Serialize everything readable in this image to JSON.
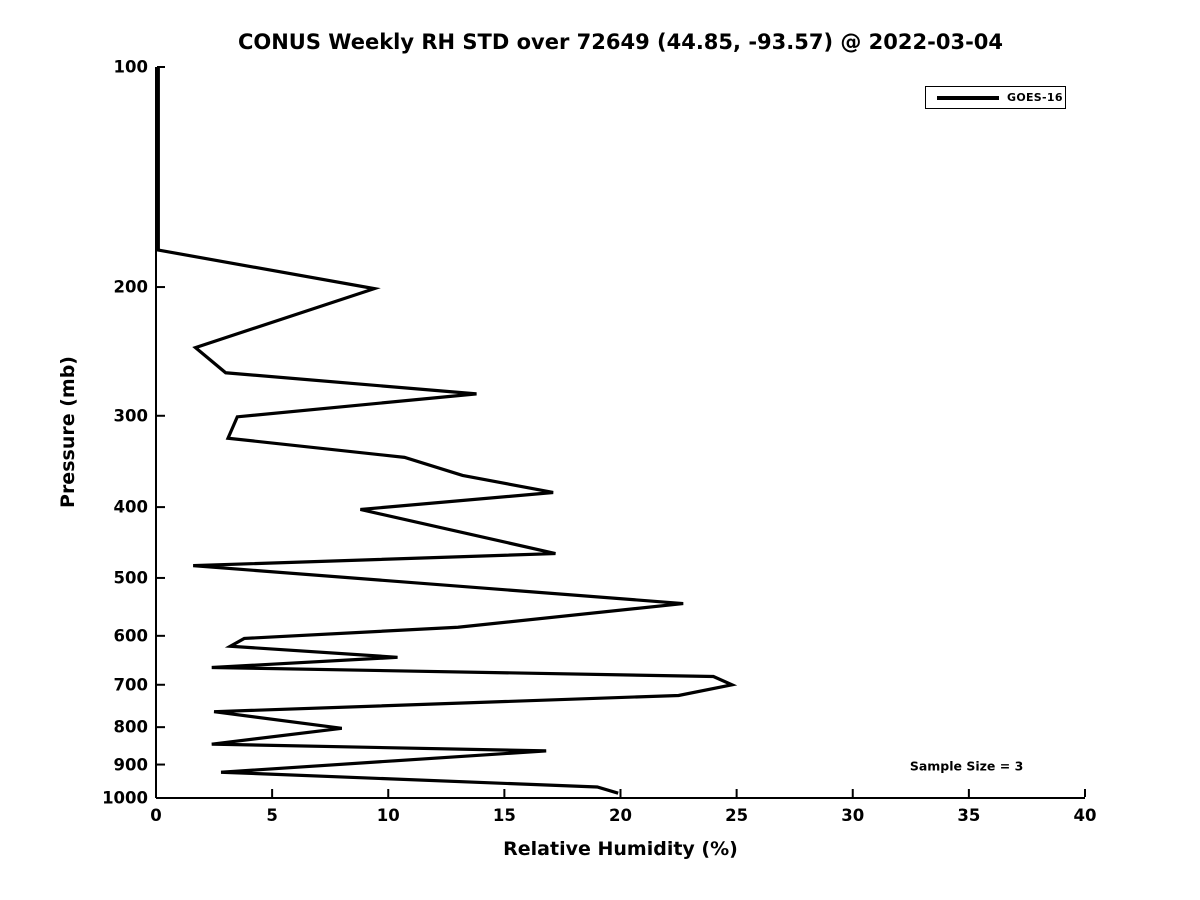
{
  "chart_data": {
    "type": "line",
    "title": "CONUS Weekly RH STD over 72649 (44.85, -93.57) @ 2022-03-04",
    "xlabel": "Relative Humidity (%)",
    "ylabel": "Pressure (mb)",
    "xlim": [
      0,
      40
    ],
    "ylim": [
      100,
      1000
    ],
    "x_ticks": [
      0,
      5,
      10,
      15,
      20,
      25,
      30,
      35,
      40
    ],
    "y_ticks": [
      100,
      200,
      300,
      400,
      500,
      600,
      700,
      800,
      900,
      1000
    ],
    "y_scale": "log",
    "y_inverted": true,
    "grid": false,
    "line_color": "#000000",
    "legend_position": "top-right",
    "series": [
      {
        "name": "GOES-16",
        "color": "#000000",
        "pressure_mb": [
          100,
          178,
          201,
          242,
          262,
          280,
          301,
          322,
          342,
          362,
          382,
          403,
          463,
          481,
          542,
          584,
          605,
          620,
          642,
          663,
          682,
          700,
          724,
          762,
          803,
          844,
          862,
          922,
          966,
          985
        ],
        "rh_std_percent": [
          0.1,
          0.1,
          9.4,
          1.7,
          3.0,
          13.8,
          3.5,
          3.1,
          10.7,
          13.2,
          17.1,
          8.8,
          17.2,
          1.6,
          22.7,
          13.0,
          3.8,
          3.2,
          10.4,
          2.4,
          24.0,
          24.8,
          22.5,
          2.5,
          8.0,
          2.4,
          16.8,
          2.8,
          19.0,
          19.9
        ]
      }
    ],
    "annotations": [
      {
        "text": "Sample Size = 3",
        "rh": 34.9,
        "pressure": 905
      }
    ]
  }
}
